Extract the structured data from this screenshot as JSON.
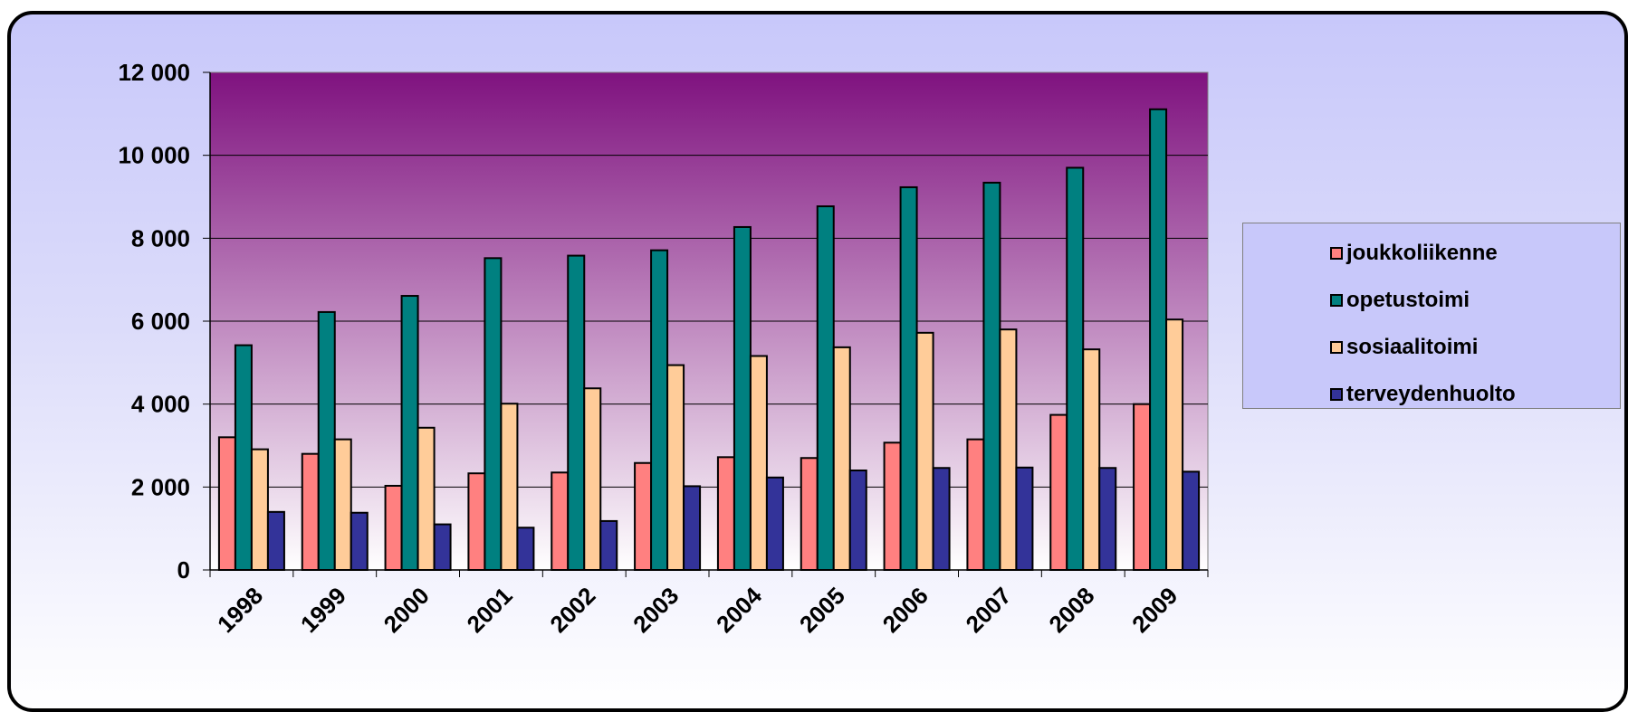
{
  "chart_data": {
    "type": "bar",
    "categories": [
      "1998",
      "1999",
      "2000",
      "2001",
      "2002",
      "2003",
      "2004",
      "2005",
      "2006",
      "2007",
      "2008",
      "2009"
    ],
    "series": [
      {
        "name": "joukkoliikenne",
        "color": "#ff8080",
        "values": [
          3200,
          2800,
          2030,
          2330,
          2350,
          2580,
          2720,
          2700,
          3070,
          3150,
          3740,
          4000
        ]
      },
      {
        "name": "opetustoimi",
        "color": "#008080",
        "values": [
          5420,
          6220,
          6610,
          7520,
          7580,
          7710,
          8270,
          8770,
          9230,
          9340,
          9700,
          11110
        ]
      },
      {
        "name": "sosiaalitoimi",
        "color": "#ffcc99",
        "values": [
          2910,
          3150,
          3430,
          4010,
          4380,
          4940,
          5160,
          5370,
          5720,
          5800,
          5320,
          6040
        ]
      },
      {
        "name": "terveydenhuolto",
        "color": "#333399",
        "values": [
          1400,
          1380,
          1100,
          1020,
          1180,
          2020,
          2230,
          2400,
          2460,
          2470,
          2460,
          2370
        ]
      }
    ],
    "ylim": [
      0,
      12000
    ],
    "yticks": [
      0,
      2000,
      4000,
      6000,
      8000,
      10000,
      12000
    ],
    "ytick_labels": [
      "0",
      "2 000",
      "4 000",
      "6 000",
      "8 000",
      "10 000",
      "12 000"
    ],
    "grid": true,
    "legend_position": "right",
    "plot_background": [
      "#7f127f",
      "#ffffff"
    ],
    "title": "",
    "xlabel": "",
    "ylabel": ""
  }
}
